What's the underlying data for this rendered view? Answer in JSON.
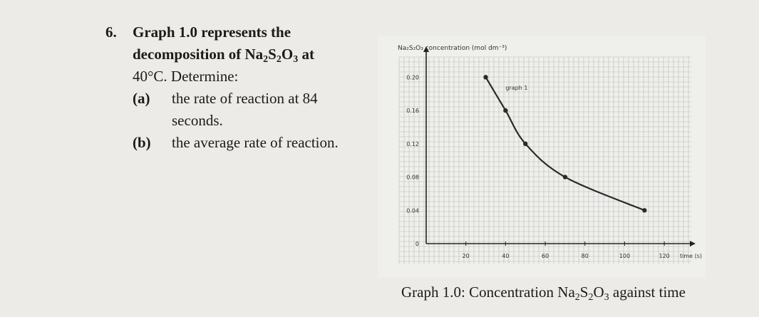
{
  "question": {
    "number": "6.",
    "line1": "Graph 1.0 represents the",
    "line2_prefix": "decomposition of Na",
    "line2_sub1": "2",
    "line2_mid": "S",
    "line2_sub2": "2",
    "line2_o": "O",
    "line2_sub3": "3",
    "line2_suffix": " at",
    "line3": "40°C. Determine:",
    "part_a_label": "(a)",
    "part_a_line1": "the rate of reaction at 84",
    "part_a_line2": "seconds.",
    "part_b_label": "(b)",
    "part_b_text": "the average rate of reaction."
  },
  "caption": {
    "prefix": "Graph 1.0: Concentration Na",
    "sub1": "2",
    "mid": "S",
    "sub2": "2",
    "o": "O",
    "sub3": "3",
    "suffix": " against time"
  },
  "chart_data": {
    "type": "line",
    "ylabel": "Na₂S₂O₃ concentration (mol dm⁻³)",
    "xlabel": "time (s)",
    "series_label": "graph 1",
    "xlim": [
      0,
      130
    ],
    "ylim": [
      0,
      0.22
    ],
    "x_ticks": [
      20,
      40,
      60,
      80,
      100,
      120
    ],
    "x_tick_labels": [
      "20",
      "40",
      "60",
      "80",
      "100",
      "120"
    ],
    "y_ticks": [
      0,
      0.04,
      0.08,
      0.12,
      0.16,
      0.2
    ],
    "y_tick_labels": [
      "0",
      "0.04",
      "0.08",
      "0.12",
      "0.16",
      "0.20"
    ],
    "series": [
      {
        "x": [
          30,
          40,
          50,
          70,
          110
        ],
        "y": [
          0.2,
          0.16,
          0.12,
          0.08,
          0.04
        ]
      }
    ],
    "grid": true,
    "line_color": "#2a2a2a",
    "grid_color": "#b9b9b9"
  }
}
